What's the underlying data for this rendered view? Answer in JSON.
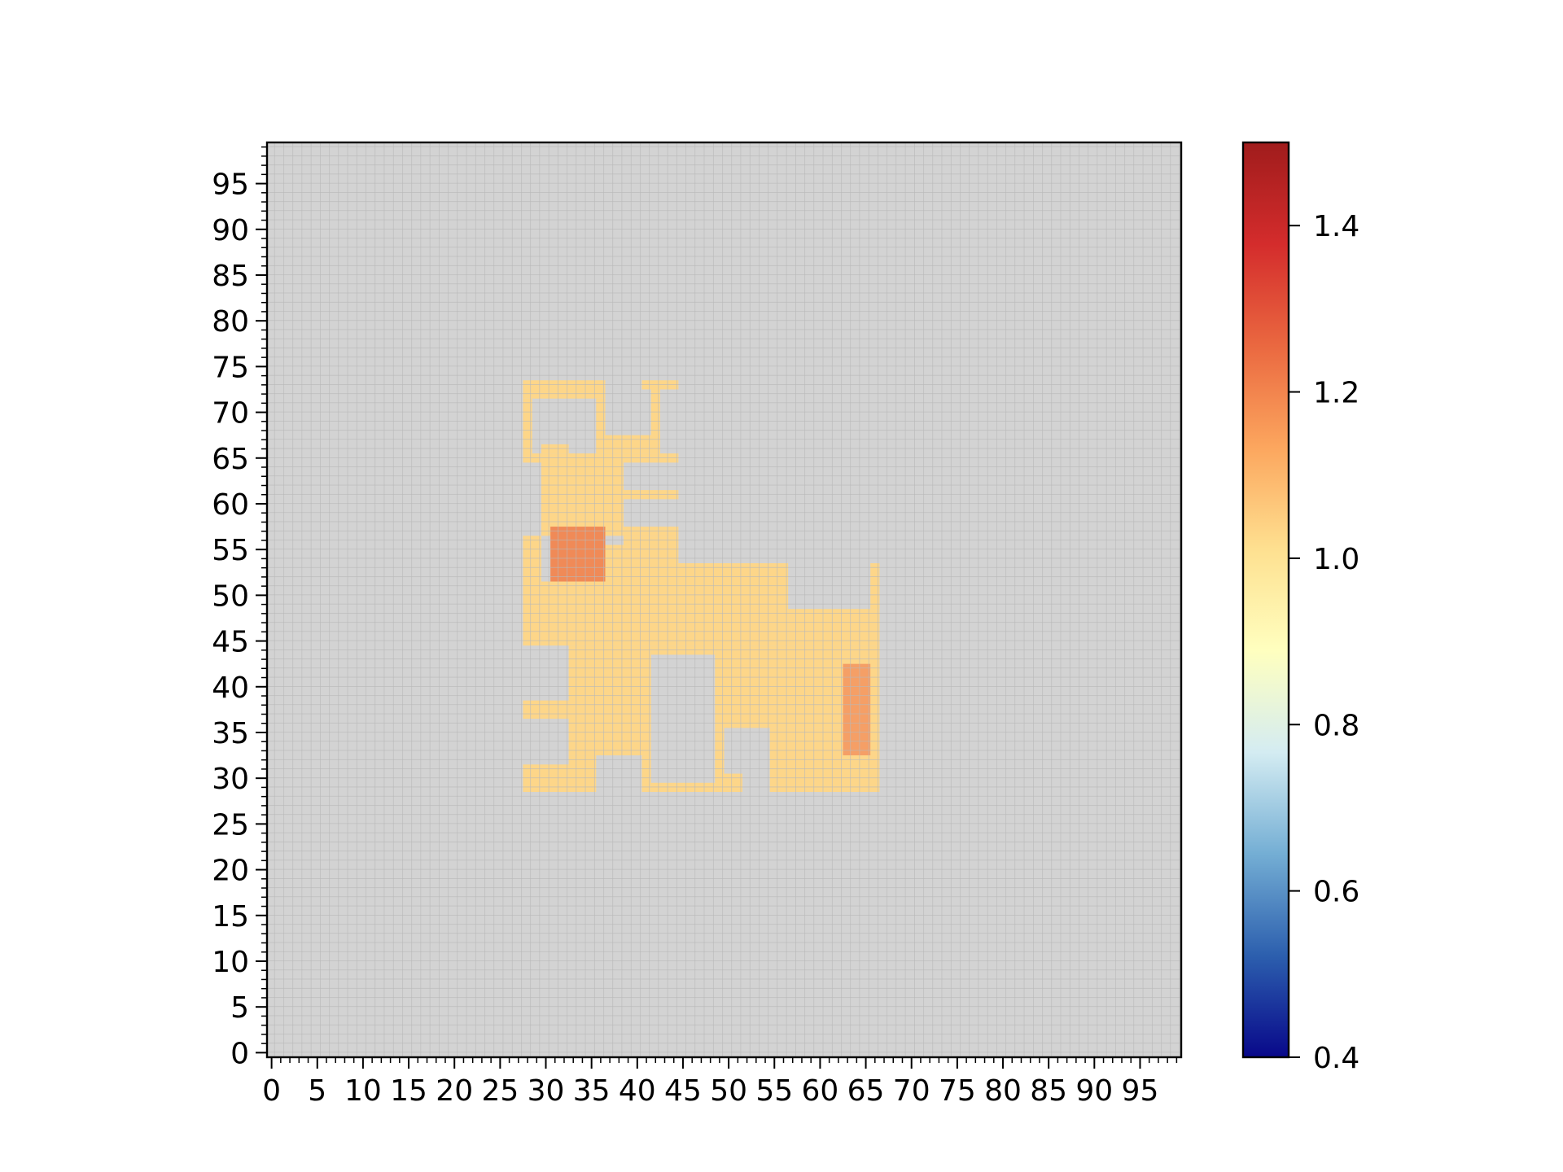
{
  "chart_data": {
    "type": "heatmap",
    "title": "",
    "xlabel": "",
    "ylabel": "",
    "grid_size": [
      100,
      100
    ],
    "xlim": [
      0,
      100
    ],
    "ylim": [
      0,
      100
    ],
    "x_ticks": [
      0,
      5,
      10,
      15,
      20,
      25,
      30,
      35,
      40,
      45,
      50,
      55,
      60,
      65,
      70,
      75,
      80,
      85,
      90,
      95
    ],
    "y_ticks": [
      0,
      5,
      10,
      15,
      20,
      25,
      30,
      35,
      40,
      45,
      50,
      55,
      60,
      65,
      70,
      75,
      80,
      85,
      90,
      95
    ],
    "x_tick_labels": [
      "0",
      "5",
      "10",
      "15",
      "20",
      "25",
      "30",
      "35",
      "40",
      "45",
      "50",
      "55",
      "60",
      "65",
      "70",
      "75",
      "80",
      "85",
      "90",
      "95"
    ],
    "y_tick_labels": [
      "0",
      "5",
      "10",
      "15",
      "20",
      "25",
      "30",
      "35",
      "40",
      "45",
      "50",
      "55",
      "60",
      "65",
      "70",
      "75",
      "80",
      "85",
      "90",
      "95"
    ],
    "grid": true,
    "colorbar": {
      "colormap": "RdYlBu_r",
      "range": [
        0.4,
        1.5
      ],
      "ticks": [
        0.4,
        0.6,
        0.8,
        1.0,
        1.2,
        1.4
      ],
      "tick_labels": [
        "0.4",
        "0.6",
        "0.8",
        "1.0",
        "1.2",
        "1.4"
      ],
      "stops": [
        "#08088a",
        "#2c5fae",
        "#74aed4",
        "#d4ecf2",
        "#ffffbf",
        "#fee090",
        "#fca65e",
        "#ea6840",
        "#d42c2c",
        "#a01c1c"
      ],
      "placement": "right"
    },
    "background_color": "#d3d3d3",
    "cell_grid_color": "#b8b8b8",
    "regions": [
      {
        "value": 1.0,
        "color": "#fdd689",
        "x": [
          28,
          37
        ],
        "y": [
          72,
          74
        ]
      },
      {
        "value": 1.0,
        "color": "#fdd689",
        "x": [
          28,
          29
        ],
        "y": [
          65,
          72
        ]
      },
      {
        "value": 1.0,
        "color": "#fdd689",
        "x": [
          36,
          37
        ],
        "y": [
          66,
          72
        ]
      },
      {
        "value": 1.0,
        "color": "#fdd689",
        "x": [
          29,
          30
        ],
        "y": [
          65,
          66
        ]
      },
      {
        "value": 1.0,
        "color": "#fdd689",
        "x": [
          41,
          45
        ],
        "y": [
          73,
          74
        ]
      },
      {
        "value": 1.0,
        "color": "#fdd689",
        "x": [
          42,
          43
        ],
        "y": [
          66,
          73
        ]
      },
      {
        "value": 1.0,
        "color": "#fdd689",
        "x": [
          37,
          43
        ],
        "y": [
          66,
          68
        ]
      },
      {
        "value": 1.0,
        "color": "#fdd689",
        "x": [
          30,
          33
        ],
        "y": [
          66,
          67
        ]
      },
      {
        "value": 1.0,
        "color": "#fdd689",
        "x": [
          30,
          35
        ],
        "y": [
          57,
          66
        ]
      },
      {
        "value": 1.0,
        "color": "#fdd689",
        "x": [
          35,
          39
        ],
        "y": [
          57,
          66
        ]
      },
      {
        "value": 1.0,
        "color": "#fdd689",
        "x": [
          39,
          45
        ],
        "y": [
          65,
          66
        ]
      },
      {
        "value": 1.0,
        "color": "#fdd689",
        "x": [
          39,
          45
        ],
        "y": [
          61,
          62
        ]
      },
      {
        "value": 1.0,
        "color": "#fdd689",
        "x": [
          39,
          45
        ],
        "y": [
          57,
          58
        ]
      },
      {
        "value": 1.0,
        "color": "#fdd689",
        "x": [
          28,
          30
        ],
        "y": [
          45,
          57
        ]
      },
      {
        "value": 1.0,
        "color": "#fdd689",
        "x": [
          30,
          45
        ],
        "y": [
          45,
          52
        ]
      },
      {
        "value": 1.0,
        "color": "#fdd689",
        "x": [
          37,
          45
        ],
        "y": [
          52,
          56
        ]
      },
      {
        "value": 1.0,
        "color": "#fdd689",
        "x": [
          39,
          45
        ],
        "y": [
          56,
          57
        ]
      },
      {
        "value": 1.0,
        "color": "#fdd689",
        "x": [
          45,
          57
        ],
        "y": [
          45,
          54
        ]
      },
      {
        "value": 1.0,
        "color": "#fdd689",
        "x": [
          57,
          67
        ],
        "y": [
          45,
          49
        ]
      },
      {
        "value": 1.0,
        "color": "#fdd689",
        "x": [
          66,
          67
        ],
        "y": [
          49,
          54
        ]
      },
      {
        "value": 1.0,
        "color": "#fdd689",
        "x": [
          33,
          42
        ],
        "y": [
          33,
          45
        ]
      },
      {
        "value": 1.0,
        "color": "#fdd689",
        "x": [
          28,
          33
        ],
        "y": [
          37,
          39
        ]
      },
      {
        "value": 1.0,
        "color": "#fdd689",
        "x": [
          28,
          33
        ],
        "y": [
          29,
          32
        ]
      },
      {
        "value": 1.0,
        "color": "#fdd689",
        "x": [
          33,
          36
        ],
        "y": [
          29,
          33
        ]
      },
      {
        "value": 1.0,
        "color": "#fdd689",
        "x": [
          41,
          42
        ],
        "y": [
          29,
          33
        ]
      },
      {
        "value": 1.0,
        "color": "#fdd689",
        "x": [
          42,
          49
        ],
        "y": [
          44,
          45
        ]
      },
      {
        "value": 1.0,
        "color": "#fdd689",
        "x": [
          49,
          67
        ],
        "y": [
          36,
          45
        ]
      },
      {
        "value": 1.0,
        "color": "#fdd689",
        "x": [
          49,
          50
        ],
        "y": [
          29,
          36
        ]
      },
      {
        "value": 1.0,
        "color": "#fdd689",
        "x": [
          50,
          52
        ],
        "y": [
          29,
          31
        ]
      },
      {
        "value": 1.0,
        "color": "#fdd689",
        "x": [
          55,
          67
        ],
        "y": [
          29,
          36
        ]
      },
      {
        "value": 1.0,
        "color": "#fdd689",
        "x": [
          42,
          49
        ],
        "y": [
          29,
          30
        ]
      },
      {
        "value": 1.16,
        "color": "#f08a57",
        "x": [
          31,
          37
        ],
        "y": [
          52,
          58
        ]
      },
      {
        "value": 1.12,
        "color": "#f59f66",
        "x": [
          63,
          66
        ],
        "y": [
          33,
          43
        ]
      }
    ]
  }
}
